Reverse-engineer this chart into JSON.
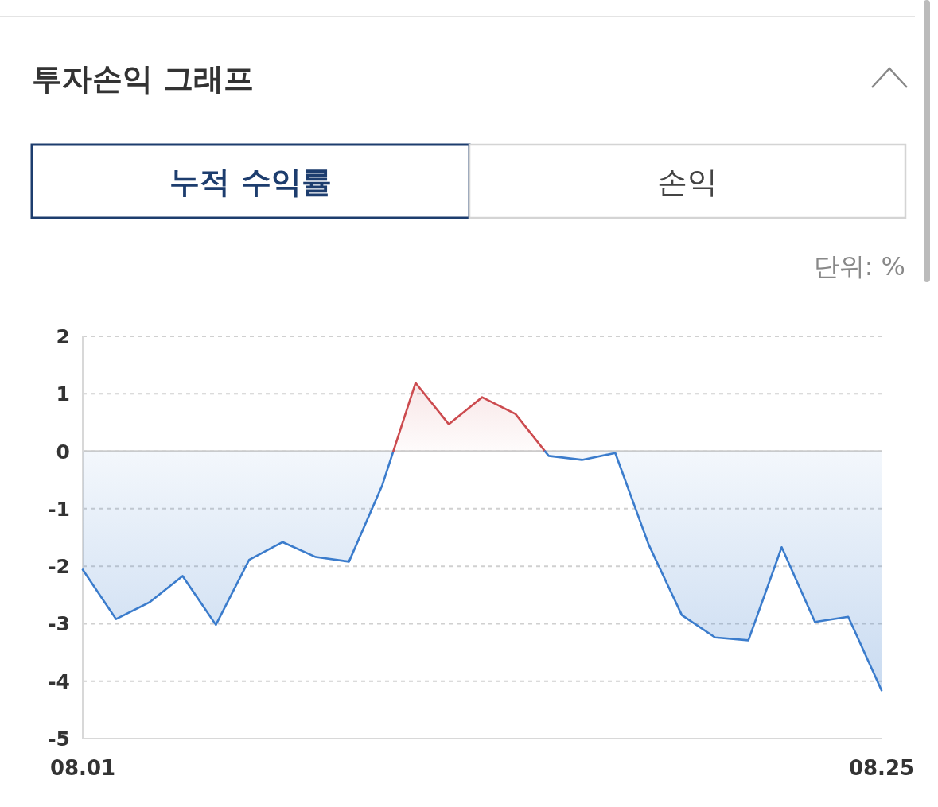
{
  "chart_data": {
    "type": "area",
    "title": "투자손익 그래프",
    "annotations": [
      "누적 수익률",
      "손익",
      "단위: %"
    ],
    "categories": [
      "08.01",
      null,
      null,
      null,
      null,
      null,
      null,
      null,
      null,
      null,
      null,
      null,
      null,
      null,
      null,
      null,
      null,
      null,
      null,
      null,
      null,
      null,
      null,
      null,
      "08.25"
    ],
    "series": [
      {
        "values": [
          -2.06,
          -2.92,
          -2.63,
          -2.17,
          -3.02,
          -1.89,
          -1.58,
          -1.84,
          -1.92,
          -0.59,
          1.19,
          0.47,
          0.94,
          0.65,
          -0.08,
          -0.15,
          -0.03,
          -1.62,
          -2.85,
          -3.24,
          -3.29,
          -1.67,
          -2.97,
          -2.88,
          -4.16
        ],
        "colors": [
          "#3b7ccc",
          "#3b7ccc",
          "#3b7ccc",
          "#3b7ccc",
          "#3b7ccc",
          "#3b7ccc",
          "#3b7ccc",
          "#3b7ccc",
          "#3b7ccc",
          "#3b7ccc",
          "#cc4b4f",
          "#cc4b4f",
          "#cc4b4f",
          "#cc4b4f",
          "#3b7ccc",
          "#3b7ccc",
          "#3b7ccc",
          "#3b7ccc",
          "#3b7ccc",
          "#3b7ccc",
          "#3b7ccc",
          "#3b7ccc",
          "#3b7ccc",
          "#3b7ccc",
          "#3b7ccc"
        ]
      }
    ],
    "ylim": [
      -5,
      2
    ],
    "yticks": [
      2,
      1,
      0,
      -1,
      -2,
      -3,
      -4,
      -5
    ],
    "grid": "y",
    "ref_lines": [
      {
        "axis": "y",
        "value": 0,
        "color": "#cccccc"
      }
    ]
  }
}
